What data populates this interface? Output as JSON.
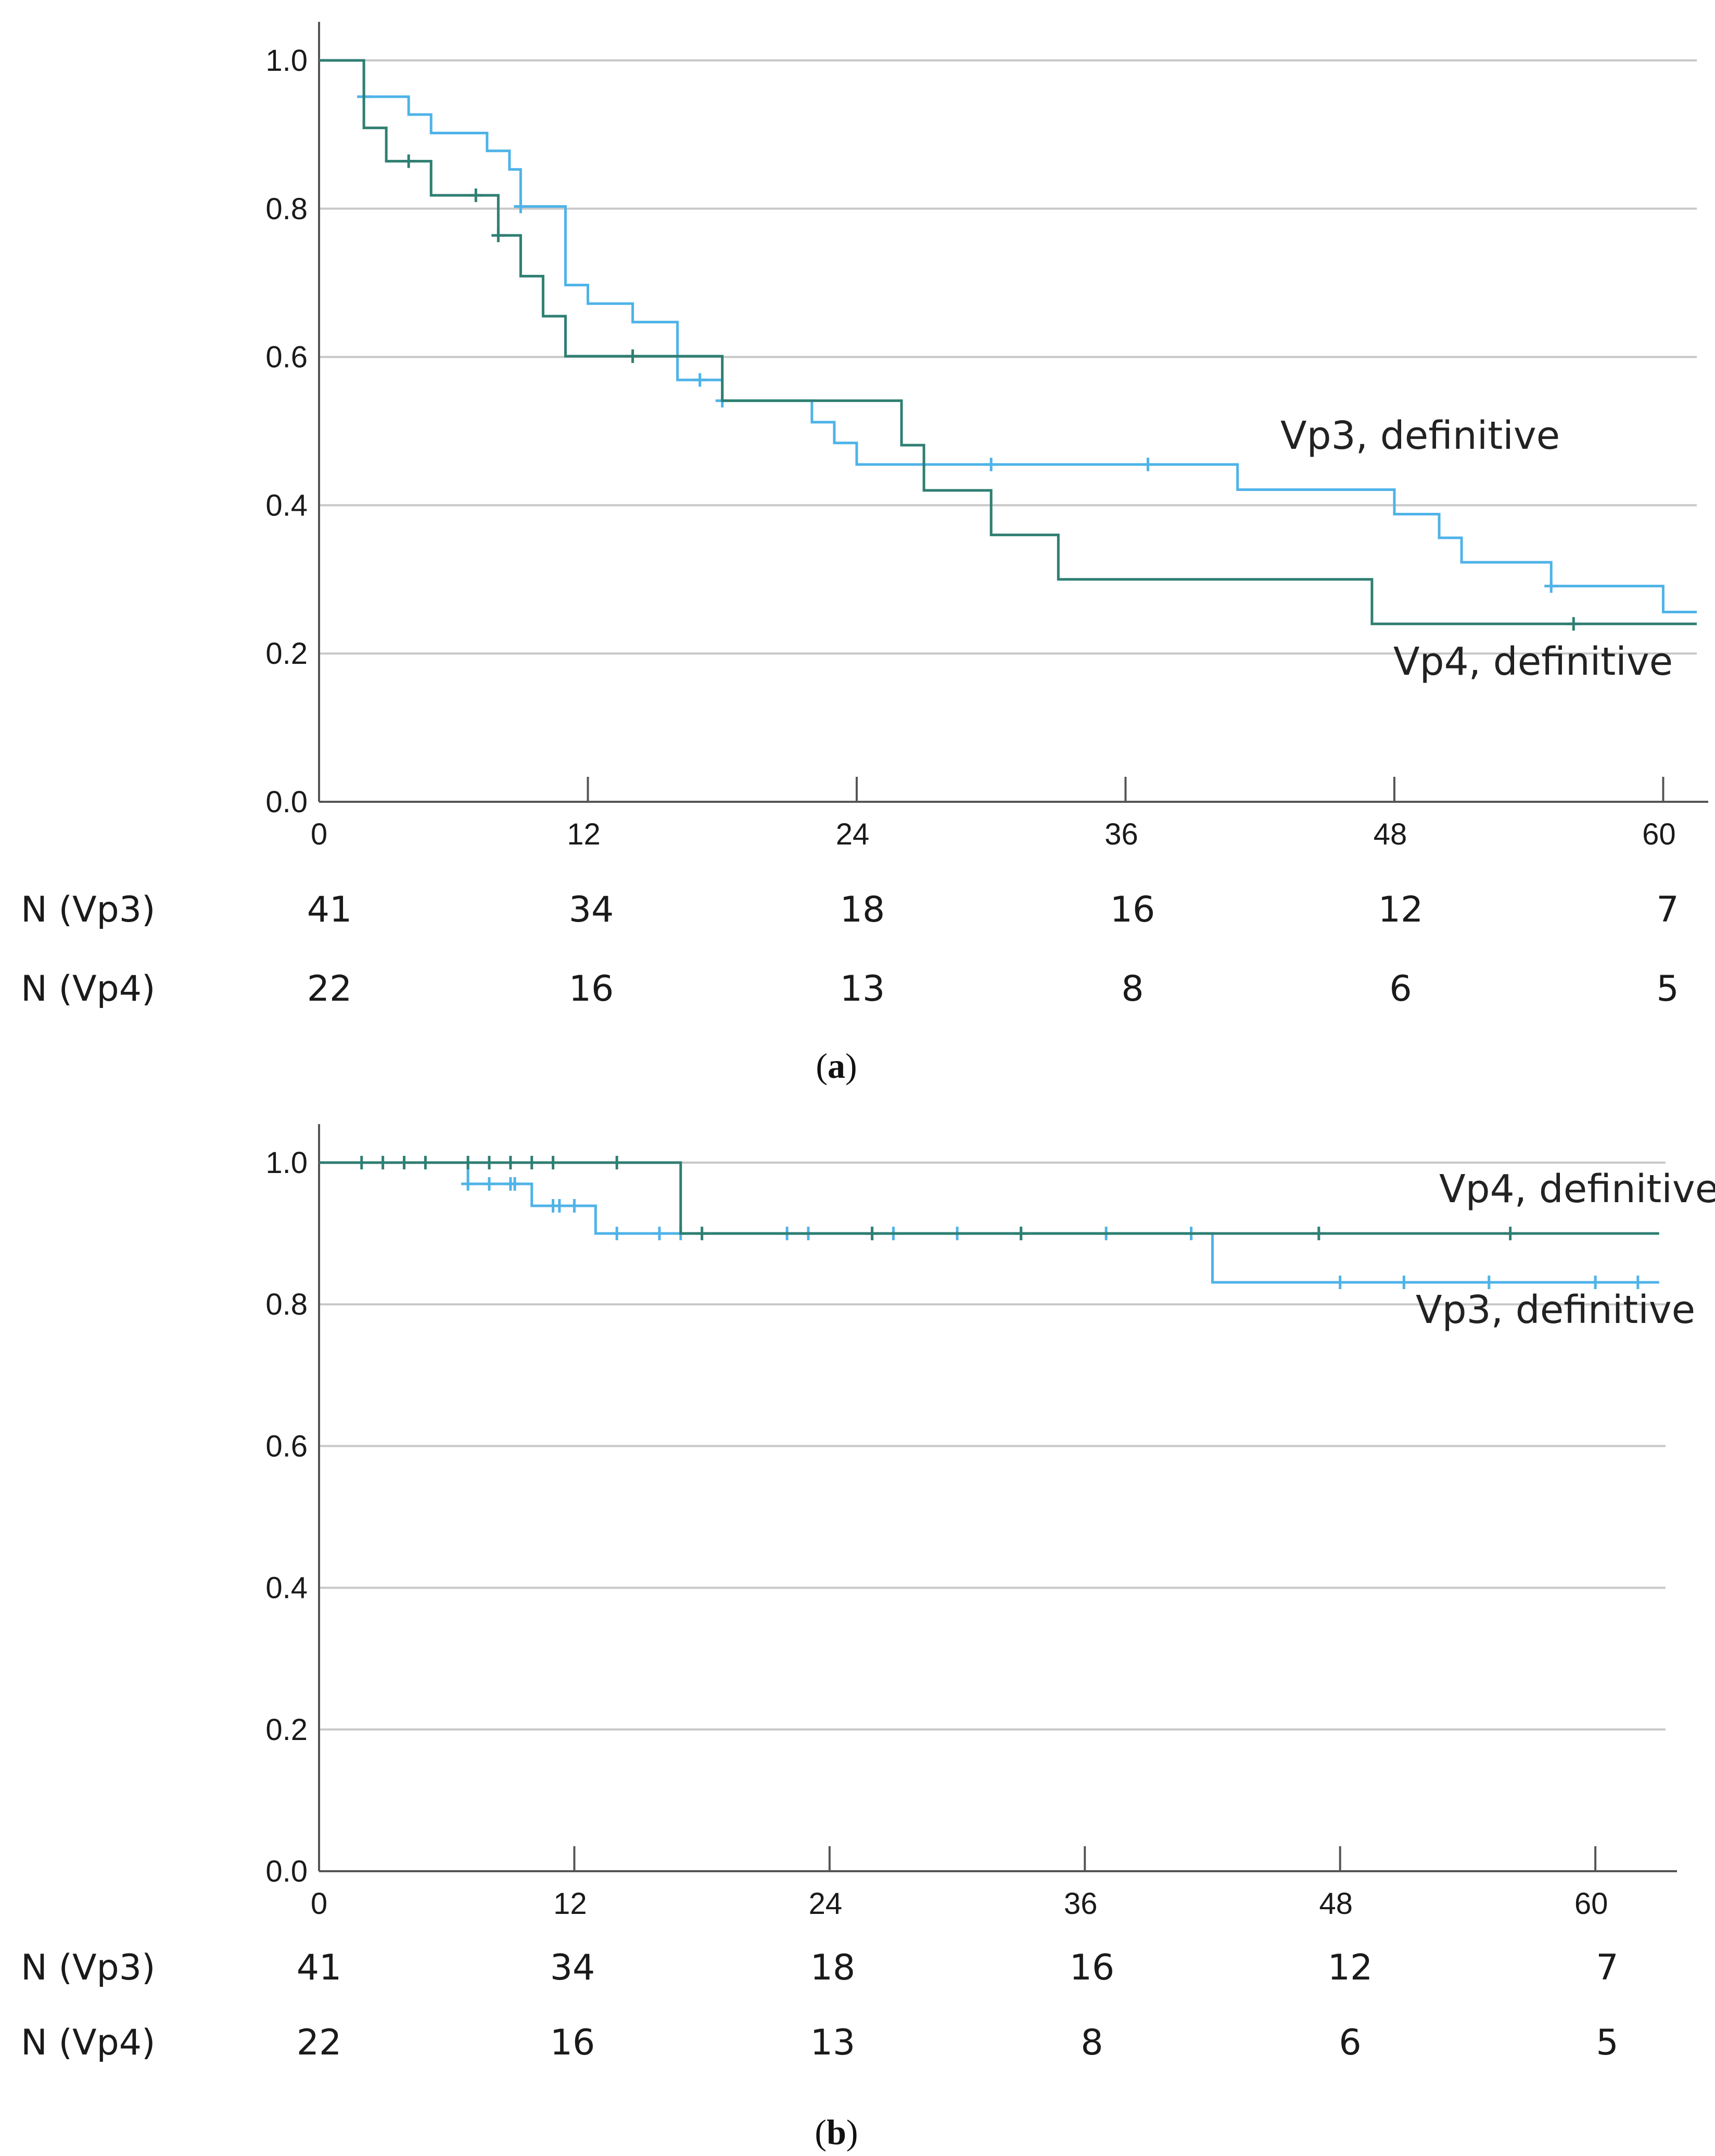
{
  "colors": {
    "vp3": "#4fb3e8",
    "vp4": "#2f7f72",
    "grid": "#c8c8c8",
    "axis": "#555555"
  },
  "chart_data": [
    {
      "panel_prefix": "(",
      "panel_letter": "a",
      "panel_suffix": ")",
      "type": "line",
      "step": true,
      "xlim": [
        0,
        61.5
      ],
      "ylim": [
        0,
        1.0
      ],
      "x_ticks": [
        0,
        12,
        24,
        36,
        48,
        60
      ],
      "x_tick_labels": [
        "0",
        "12",
        "24",
        "36",
        "48",
        "60"
      ],
      "y_ticks": [
        0,
        0.2,
        0.4,
        0.6,
        0.8,
        1.0
      ],
      "y_tick_labels": [
        "0.0",
        "0.2",
        "0.4",
        "0.6",
        "0.8",
        "1.0"
      ],
      "grid": true,
      "series": [
        {
          "name": "Vp3, definitive",
          "color_key": "vp3",
          "steps": [
            [
              0,
              1.0
            ],
            [
              2,
              0.951
            ],
            [
              4,
              0.927
            ],
            [
              5,
              0.902
            ],
            [
              7.5,
              0.878
            ],
            [
              8.5,
              0.853
            ],
            [
              9,
              0.803
            ],
            [
              11,
              0.697
            ],
            [
              12,
              0.672
            ],
            [
              14,
              0.647
            ],
            [
              16,
              0.569
            ],
            [
              18,
              0.541
            ],
            [
              22,
              0.512
            ],
            [
              23,
              0.484
            ],
            [
              24,
              0.455
            ],
            [
              41,
              0.421
            ],
            [
              48,
              0.388
            ],
            [
              50,
              0.356
            ],
            [
              51,
              0.323
            ],
            [
              55,
              0.291
            ],
            [
              60,
              0.256
            ],
            [
              61.5,
              0.256
            ]
          ],
          "censor": [
            [
              2,
              0.951
            ],
            [
              9,
              0.803
            ],
            [
              17,
              0.569
            ],
            [
              18,
              0.541
            ],
            [
              30,
              0.455
            ],
            [
              37,
              0.455
            ],
            [
              55,
              0.291
            ]
          ]
        },
        {
          "name": "Vp4, definitive",
          "color_key": "vp4",
          "steps": [
            [
              0,
              1.0
            ],
            [
              2,
              0.909
            ],
            [
              3,
              0.864
            ],
            [
              5,
              0.818
            ],
            [
              8,
              0.764
            ],
            [
              9,
              0.709
            ],
            [
              10,
              0.655
            ],
            [
              11,
              0.601
            ],
            [
              18,
              0.541
            ],
            [
              26,
              0.481
            ],
            [
              27,
              0.42
            ],
            [
              30,
              0.36
            ],
            [
              33,
              0.3
            ],
            [
              47,
              0.24
            ],
            [
              61.5,
              0.24
            ]
          ],
          "censor": [
            [
              4,
              0.864
            ],
            [
              7,
              0.818
            ],
            [
              8,
              0.764
            ],
            [
              14,
              0.601
            ],
            [
              56,
              0.24
            ]
          ]
        }
      ],
      "risk_table": {
        "times": [
          "0",
          "12",
          "24",
          "36",
          "48",
          "60"
        ],
        "rows": [
          {
            "label": "N (Vp3)",
            "values": [
              "41",
              "34",
              "18",
              "16",
              "12",
              "7"
            ]
          },
          {
            "label": "N (Vp4)",
            "values": [
              "22",
              "16",
              "13",
              "8",
              "6",
              "5"
            ]
          }
        ]
      }
    },
    {
      "panel_prefix": "(",
      "panel_letter": "b",
      "panel_suffix": ")",
      "type": "line",
      "step": true,
      "xlim": [
        0,
        63.3
      ],
      "ylim": [
        0,
        1.0
      ],
      "x_ticks": [
        0,
        12,
        24,
        36,
        48,
        60
      ],
      "x_tick_labels": [
        "0",
        "12",
        "24",
        "36",
        "48",
        "60"
      ],
      "y_ticks": [
        0,
        0.2,
        0.4,
        0.6,
        0.8,
        1.0
      ],
      "y_tick_labels": [
        "0.0",
        "0.2",
        "0.4",
        "0.6",
        "0.8",
        "1.0"
      ],
      "grid": true,
      "series": [
        {
          "name": "Vp3, definitive",
          "color_key": "vp3",
          "steps": [
            [
              0,
              1.0
            ],
            [
              7,
              0.97
            ],
            [
              10,
              0.939
            ],
            [
              13,
              0.9
            ],
            [
              42,
              0.831
            ],
            [
              63,
              0.831
            ]
          ],
          "censor": [
            [
              7,
              0.97
            ],
            [
              8,
              0.97
            ],
            [
              9,
              0.97
            ],
            [
              9.2,
              0.97
            ],
            [
              11,
              0.939
            ],
            [
              11.3,
              0.939
            ],
            [
              12,
              0.939
            ],
            [
              14,
              0.9
            ],
            [
              16,
              0.9
            ],
            [
              17,
              0.9
            ],
            [
              22,
              0.9
            ],
            [
              23,
              0.9
            ],
            [
              26,
              0.9
            ],
            [
              27,
              0.9
            ],
            [
              30,
              0.9
            ],
            [
              33,
              0.9
            ],
            [
              37,
              0.9
            ],
            [
              41,
              0.9
            ],
            [
              48,
              0.831
            ],
            [
              51,
              0.831
            ],
            [
              55,
              0.831
            ],
            [
              60,
              0.831
            ],
            [
              62,
              0.831
            ]
          ]
        },
        {
          "name": "Vp4, definitive",
          "color_key": "vp4",
          "steps": [
            [
              0,
              1.0
            ],
            [
              17,
              0.9
            ],
            [
              63,
              0.9
            ]
          ],
          "censor": [
            [
              2,
              1.0
            ],
            [
              3,
              1.0
            ],
            [
              4,
              1.0
            ],
            [
              5,
              1.0
            ],
            [
              7,
              1.0
            ],
            [
              8,
              1.0
            ],
            [
              9,
              1.0
            ],
            [
              10,
              1.0
            ],
            [
              11,
              1.0
            ],
            [
              14,
              1.0
            ],
            [
              18,
              0.9
            ],
            [
              26,
              0.9
            ],
            [
              33,
              0.9
            ],
            [
              47,
              0.9
            ],
            [
              56,
              0.9
            ]
          ]
        }
      ],
      "risk_table": {
        "times": [
          "0",
          "12",
          "24",
          "36",
          "48",
          "60"
        ],
        "rows": [
          {
            "label": "N (Vp3)",
            "values": [
              "41",
              "34",
              "18",
              "16",
              "12",
              "7"
            ]
          },
          {
            "label": "N (Vp4)",
            "values": [
              "22",
              "16",
              "13",
              "8",
              "6",
              "5"
            ]
          }
        ]
      }
    }
  ]
}
